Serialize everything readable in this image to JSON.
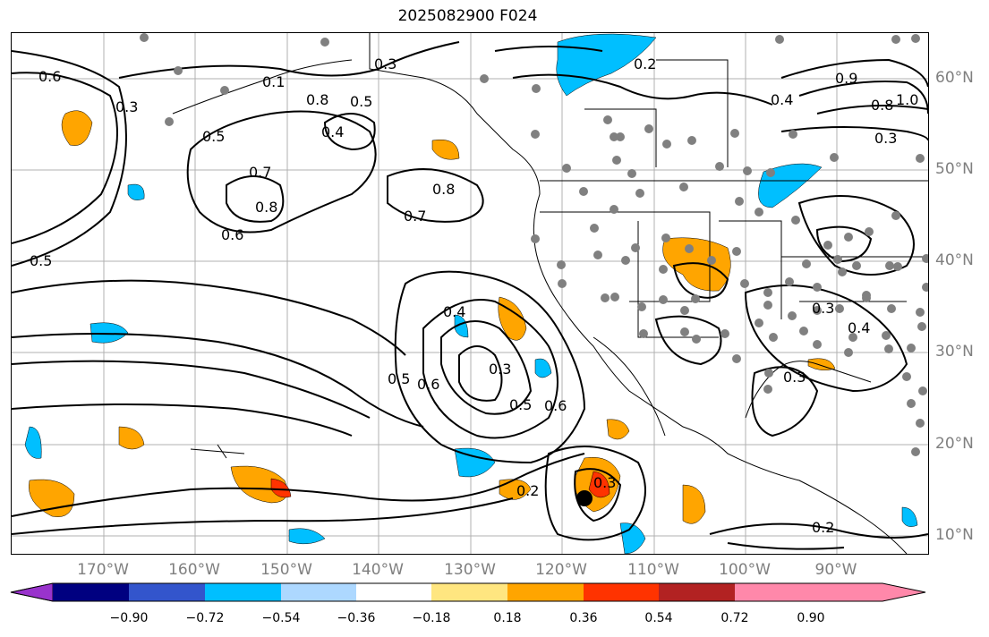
{
  "title": "2025082900 F024",
  "lat_labels": [
    "60°N",
    "50°N",
    "40°N",
    "30°N",
    "20°N",
    "10°N"
  ],
  "lon_labels": [
    "170°W",
    "160°W",
    "150°W",
    "140°W",
    "130°W",
    "120°W",
    "110°W",
    "100°W",
    "90°W"
  ],
  "colorbar": {
    "ticks": [
      "−0.90",
      "−0.72",
      "−0.54",
      "−0.36",
      "−0.18",
      "0.18",
      "0.36",
      "0.54",
      "0.72",
      "0.90"
    ],
    "colors": [
      "#9933cc",
      "#000080",
      "#3355cc",
      "#00bfff",
      "#add8ff",
      "#ffffff",
      "#ffe680",
      "#ffa500",
      "#ff3300",
      "#b22222",
      "#ff88aa"
    ]
  },
  "contour_labels": [
    "0.6",
    "0.3",
    "0.5",
    "0.4",
    "0.8",
    "0.7",
    "0.8",
    "0.6",
    "0.5",
    "0.4",
    "0.5",
    "0.6",
    "0.3",
    "0.5",
    "0.6",
    "0.2",
    "0.3",
    "0.2",
    "0.3",
    "0.4",
    "0.3",
    "0.9",
    "0.8",
    "1.0",
    "0.4",
    "0.3",
    "0.5",
    "0.3",
    "0.2",
    "0.7",
    "0.8",
    "0.1"
  ],
  "colors": {
    "contour": "#000000",
    "grid": "#b0b0b0",
    "station": "#808080",
    "land": "#000000"
  }
}
